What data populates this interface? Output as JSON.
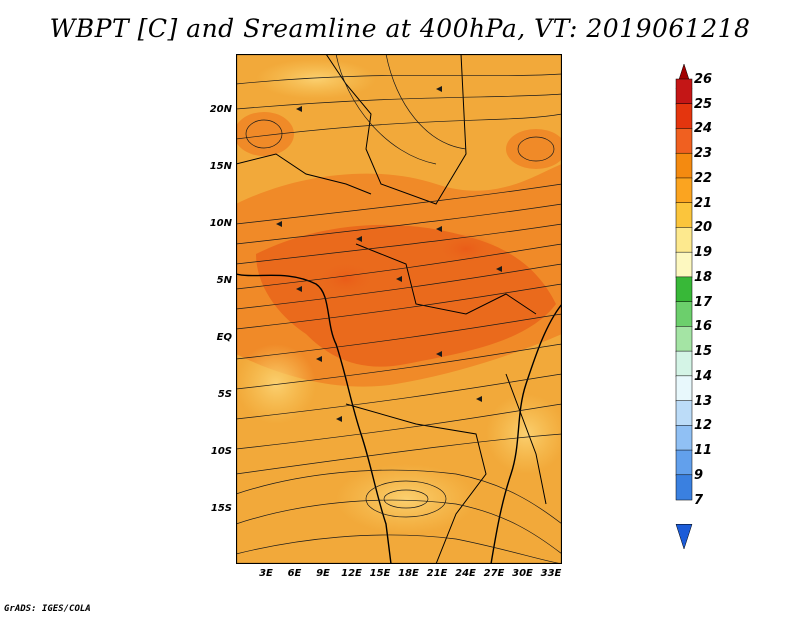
{
  "title": "WBPT [C] and Sreamline at 400hPa, VT: 2019061218",
  "credit": "GrADS: IGES/COLA",
  "map": {
    "y_ticks": [
      "20N",
      "15N",
      "10N",
      "5N",
      "EQ",
      "5S",
      "10S",
      "15S"
    ],
    "x_ticks": [
      "3E",
      "6E",
      "9E",
      "12E",
      "15E",
      "18E",
      "21E",
      "24E",
      "27E",
      "30E",
      "33E"
    ],
    "colors": {
      "base": "#f2a93a",
      "warm": "#f08a28",
      "hot": "#ea6a1c",
      "cool": "#f8c85c",
      "coast": "#000000"
    }
  },
  "colorbar": {
    "labels": [
      "26",
      "25",
      "24",
      "23",
      "22",
      "21",
      "20",
      "19",
      "18",
      "17",
      "16",
      "15",
      "14",
      "13",
      "12",
      "11",
      "9",
      "7"
    ],
    "colors": [
      "#a00000",
      "#c41616",
      "#e4350e",
      "#f06020",
      "#f48a10",
      "#fba420",
      "#fbc53c",
      "#fde98e",
      "#fdf8c0",
      "#38b838",
      "#6ccf6c",
      "#a4e4a4",
      "#d4f4e6",
      "#e8f8fc",
      "#bcdcf8",
      "#90c0f4",
      "#62a0ec",
      "#3a80e0",
      "#1c5cd8"
    ]
  }
}
